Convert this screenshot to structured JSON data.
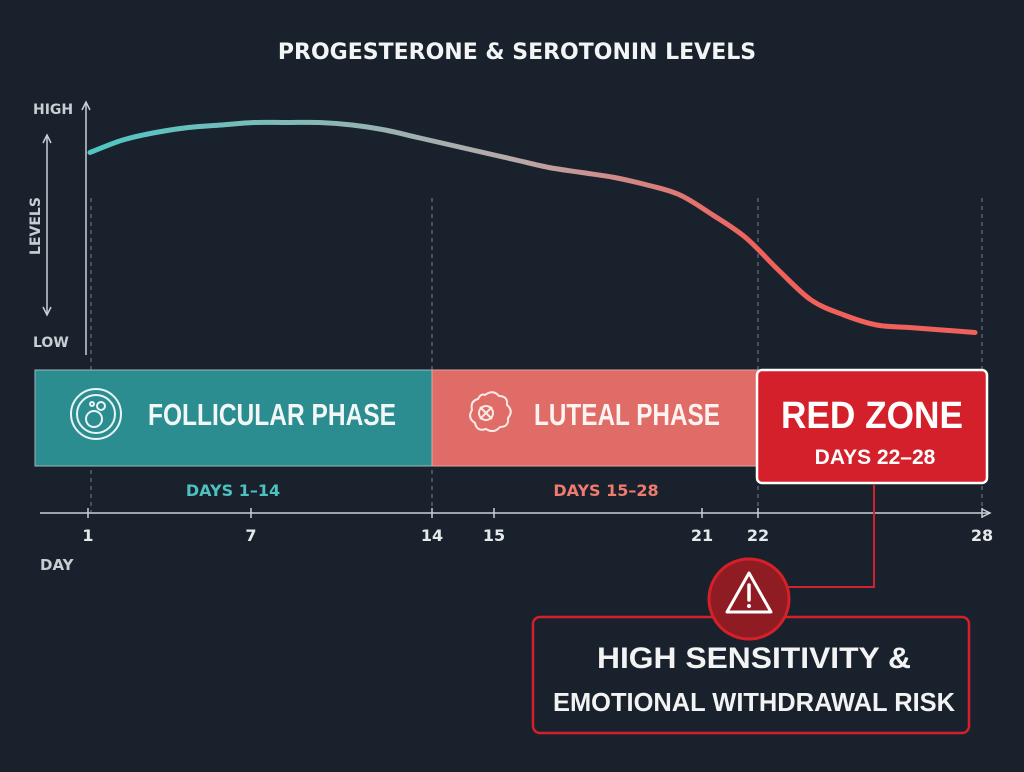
{
  "chart_data": {
    "type": "line",
    "title": "PROGESTERONE & SEROTONIN LEVELS",
    "xlabel": "DAY",
    "ylabel": "LEVELS",
    "y_high_label": "HIGH",
    "y_low_label": "LOW",
    "xlim": [
      1,
      28
    ],
    "ylim": [
      0,
      1
    ],
    "x_ticks": [
      1,
      7,
      14,
      15,
      21,
      22,
      28
    ],
    "reference_days": [
      1,
      14,
      22,
      28
    ],
    "series": [
      {
        "x": [
          1,
          2,
          3,
          4,
          5,
          6,
          7,
          8,
          9,
          10,
          11,
          12,
          13,
          14,
          15,
          16,
          17,
          18,
          19,
          20,
          21,
          22,
          23,
          24,
          25,
          26,
          27,
          28
        ],
        "y": [
          0.77,
          0.82,
          0.85,
          0.87,
          0.88,
          0.89,
          0.89,
          0.89,
          0.88,
          0.86,
          0.83,
          0.8,
          0.77,
          0.74,
          0.71,
          0.69,
          0.67,
          0.64,
          0.6,
          0.52,
          0.43,
          0.3,
          0.18,
          0.12,
          0.08,
          0.07,
          0.06,
          0.05
        ]
      }
    ],
    "line_colors": {
      "start": "#4fc6c3",
      "mid": "#b9a9aa",
      "end": "#f0615c"
    },
    "grid": false,
    "legend": "none"
  },
  "phases": [
    {
      "label": "FOLLICULAR PHASE",
      "days": "DAYS 1–14",
      "color": "#2c8d91",
      "text_color": "#4fc0c0",
      "icon": "follicle-icon"
    },
    {
      "label": "LUTEAL PHASE",
      "days": "DAYS 15–28",
      "color": "#df6c66",
      "text_color": "#f07a70",
      "icon": "corpus-luteum-icon"
    }
  ],
  "red_zone": {
    "label": "RED ZONE",
    "days": "DAYS 22–28",
    "color": "#d4202a"
  },
  "warning": {
    "icon": "warning-triangle-icon",
    "line1": "HIGH SENSITIVITY &",
    "line2": "EMOTIONAL WITHDRAWAL RISK"
  }
}
